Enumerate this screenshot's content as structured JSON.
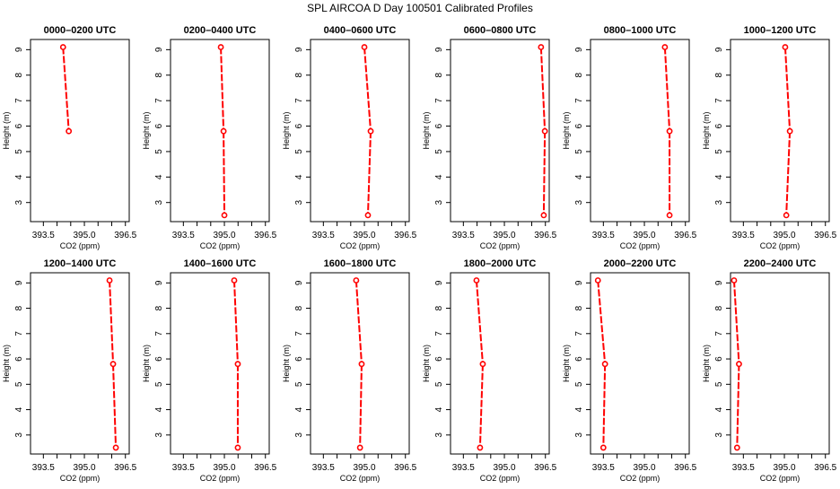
{
  "chart_data": {
    "type": "line",
    "title": "SPL AIRCOA D  Day 100501  Calibrated Profiles",
    "xlabel": "CO2 (ppm)",
    "ylabel": "Height (m)",
    "xlim": [
      393.03,
      396.64
    ],
    "ylim": [
      2.25,
      9.4
    ],
    "xticks": [
      393.5,
      394.0,
      394.5,
      395.0,
      395.5,
      396.0,
      396.5
    ],
    "xtick_labels": [
      "393.5",
      "",
      "",
      "395.0",
      "",
      "",
      "396.5"
    ],
    "yticks": [
      3,
      4,
      5,
      6,
      7,
      8,
      9
    ],
    "ytick_labels": [
      "3",
      "4",
      "5",
      "6",
      "7",
      "8",
      "9"
    ],
    "series_color": "#ff0000",
    "panels": [
      {
        "title": "0000–0200 UTC",
        "co2": [
          394.22,
          394.43
        ],
        "height": [
          9.1,
          5.8
        ]
      },
      {
        "title": "0200–0400 UTC",
        "co2": [
          394.87,
          394.97,
          395.0
        ],
        "height": [
          9.1,
          5.8,
          2.5
        ]
      },
      {
        "title": "0400–0600 UTC",
        "co2": [
          395.0,
          395.23,
          395.13
        ],
        "height": [
          9.1,
          5.8,
          2.5
        ]
      },
      {
        "title": "0600–0800 UTC",
        "co2": [
          396.34,
          396.48,
          396.44
        ],
        "height": [
          9.1,
          5.8,
          2.5
        ]
      },
      {
        "title": "0800–1000 UTC",
        "co2": [
          395.75,
          395.92,
          395.92
        ],
        "height": [
          9.1,
          5.8,
          2.5
        ]
      },
      {
        "title": "1000–1200 UTC",
        "co2": [
          395.03,
          395.2,
          395.07
        ],
        "height": [
          9.1,
          5.8,
          2.5
        ]
      },
      {
        "title": "1200–1400 UTC",
        "co2": [
          395.92,
          396.05,
          396.15
        ],
        "height": [
          9.1,
          5.8,
          2.5
        ]
      },
      {
        "title": "1400–1600 UTC",
        "co2": [
          395.36,
          395.49,
          395.49
        ],
        "height": [
          9.1,
          5.8,
          2.5
        ]
      },
      {
        "title": "1600–1800 UTC",
        "co2": [
          394.7,
          394.9,
          394.84
        ],
        "height": [
          9.1,
          5.8,
          2.5
        ]
      },
      {
        "title": "1800–2000 UTC",
        "co2": [
          393.98,
          394.21,
          394.11
        ],
        "height": [
          9.1,
          5.8,
          2.5
        ]
      },
      {
        "title": "2000–2200 UTC",
        "co2": [
          393.3,
          393.56,
          393.5
        ],
        "height": [
          9.1,
          5.8,
          2.5
        ]
      },
      {
        "title": "2200–2400 UTC",
        "co2": [
          393.16,
          393.34,
          393.27
        ],
        "height": [
          9.1,
          5.8,
          2.5
        ]
      }
    ]
  }
}
